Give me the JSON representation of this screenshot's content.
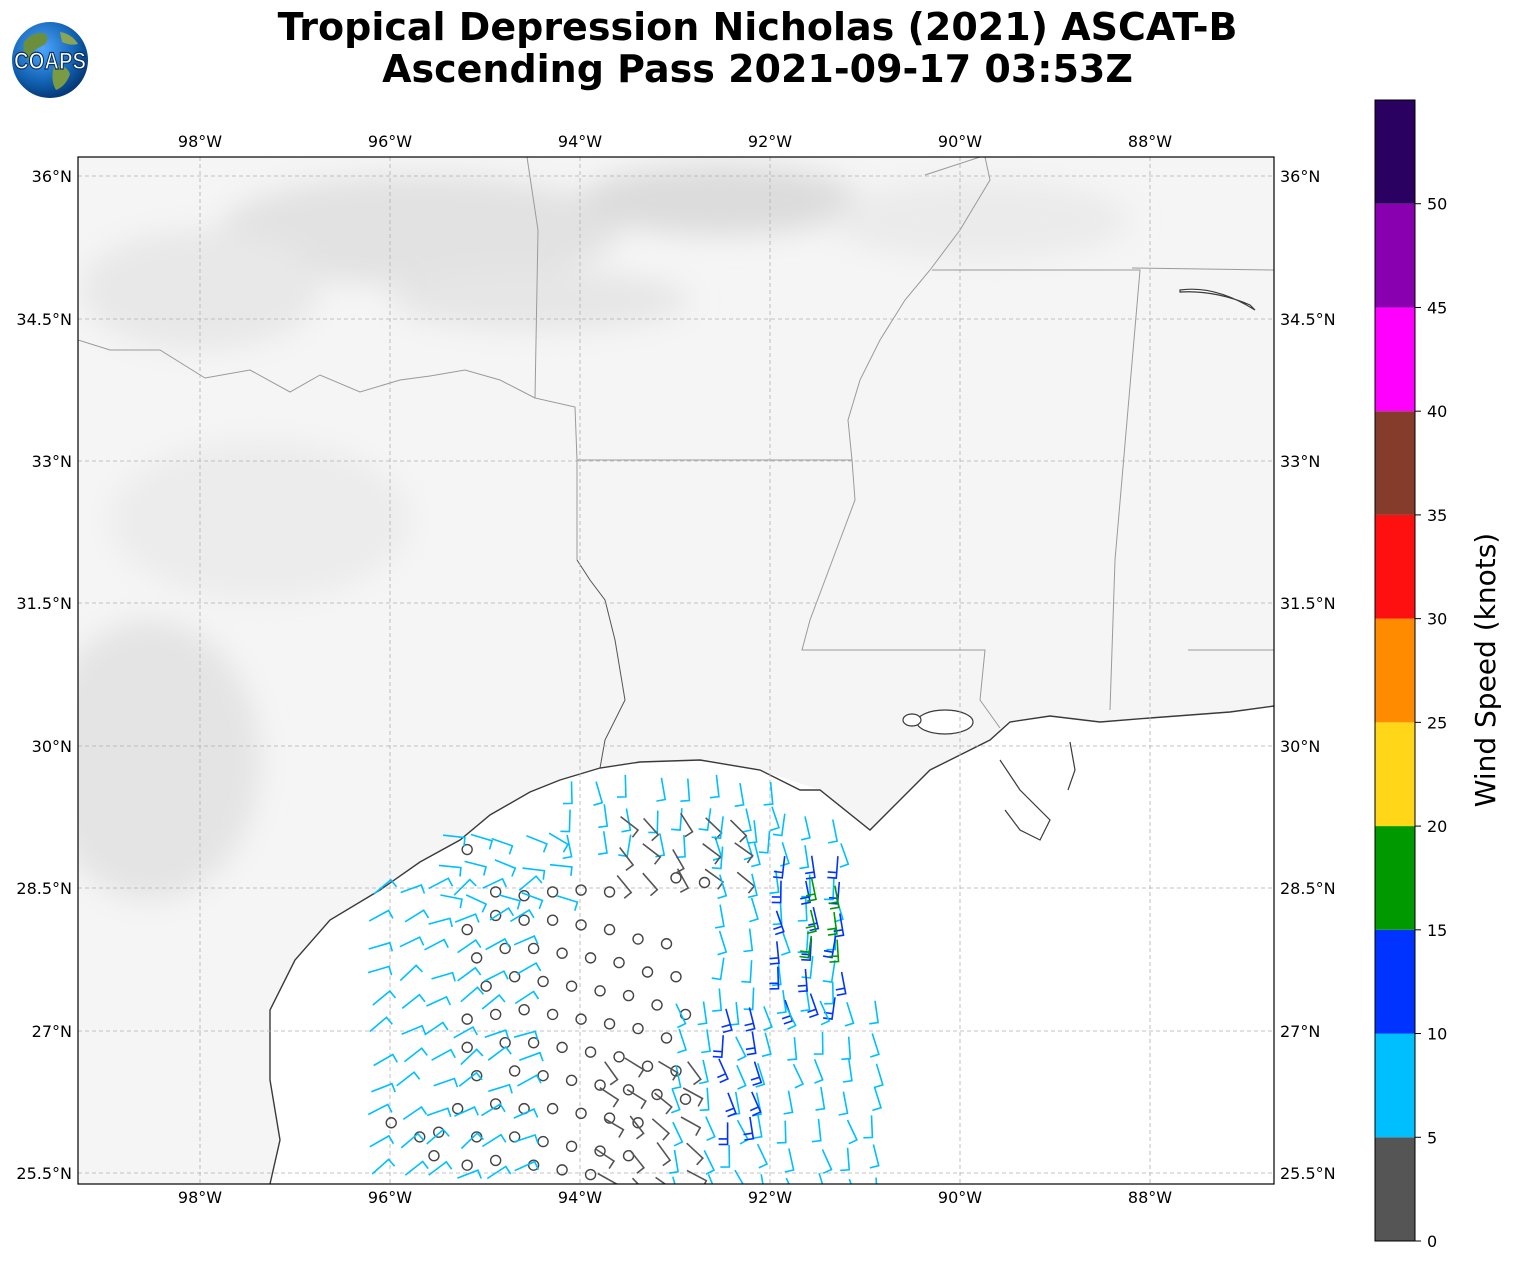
{
  "title": {
    "line1": "Tropical Depression Nicholas (2021) ASCAT-B",
    "line2": "Ascending Pass 2021-09-17 03:53Z"
  },
  "logo": {
    "text": "COAPS",
    "icon": "globe-logo-icon"
  },
  "map": {
    "lon_range": [
      -99.3,
      -86.7
    ],
    "lat_range": [
      25.3,
      36.2
    ],
    "lon_ticks": [
      "98°W",
      "96°W",
      "94°W",
      "92°W",
      "90°W",
      "88°W"
    ],
    "lat_ticks": [
      "36°N",
      "34.5°N",
      "33°N",
      "31.5°N",
      "30°N",
      "28.5°N",
      "27°N",
      "25.5°N"
    ],
    "gridlines": true,
    "background": "grayscale satellite imagery"
  },
  "colorbar": {
    "label": "Wind Speed (knots)",
    "ticks": [
      "0",
      "5",
      "10",
      "15",
      "20",
      "25",
      "30",
      "35",
      "40",
      "45",
      "50"
    ],
    "bins": [
      {
        "min": 0,
        "max": 5,
        "color": "#555555"
      },
      {
        "min": 5,
        "max": 10,
        "color": "#00bfff"
      },
      {
        "min": 10,
        "max": 15,
        "color": "#0033ff"
      },
      {
        "min": 15,
        "max": 20,
        "color": "#009900"
      },
      {
        "min": 20,
        "max": 25,
        "color": "#ffd618"
      },
      {
        "min": 25,
        "max": 30,
        "color": "#ff8c00"
      },
      {
        "min": 30,
        "max": 35,
        "color": "#ff1010"
      },
      {
        "min": 35,
        "max": 40,
        "color": "#853c2a"
      },
      {
        "min": 40,
        "max": 45,
        "color": "#ff00ff"
      },
      {
        "min": 45,
        "max": 50,
        "color": "#8800b0"
      },
      {
        "min": 50,
        "max": 55,
        "color": "#2a0060"
      }
    ]
  },
  "wind_data": {
    "calm_points": [
      [
        -94.9,
        28.4
      ],
      [
        -94.6,
        28.36
      ],
      [
        -94.3,
        28.4
      ],
      [
        -94.0,
        28.42
      ],
      [
        -93.7,
        28.4
      ],
      [
        -95.2,
        28.0
      ],
      [
        -94.9,
        28.15
      ],
      [
        -94.6,
        28.1
      ],
      [
        -94.3,
        28.1
      ],
      [
        -94.0,
        28.05
      ],
      [
        -93.7,
        28.0
      ],
      [
        -93.4,
        27.9
      ],
      [
        -93.1,
        27.85
      ],
      [
        -95.1,
        27.7
      ],
      [
        -94.8,
        27.8
      ],
      [
        -94.5,
        27.8
      ],
      [
        -94.2,
        27.75
      ],
      [
        -93.9,
        27.7
      ],
      [
        -93.6,
        27.65
      ],
      [
        -93.3,
        27.55
      ],
      [
        -93.0,
        27.5
      ],
      [
        -95.0,
        27.4
      ],
      [
        -94.7,
        27.5
      ],
      [
        -94.4,
        27.45
      ],
      [
        -94.1,
        27.4
      ],
      [
        -93.8,
        27.35
      ],
      [
        -93.5,
        27.3
      ],
      [
        -93.2,
        27.2
      ],
      [
        -92.9,
        27.1
      ],
      [
        -94.9,
        27.1
      ],
      [
        -94.6,
        27.15
      ],
      [
        -94.3,
        27.1
      ],
      [
        -94.0,
        27.05
      ],
      [
        -93.7,
        27.0
      ],
      [
        -93.4,
        26.95
      ],
      [
        -93.1,
        26.85
      ],
      [
        -95.2,
        26.75
      ],
      [
        -94.8,
        26.8
      ],
      [
        -94.5,
        26.8
      ],
      [
        -94.2,
        26.75
      ],
      [
        -93.9,
        26.7
      ],
      [
        -93.6,
        26.65
      ],
      [
        -93.3,
        26.55
      ],
      [
        -93.0,
        26.5
      ],
      [
        -95.1,
        26.45
      ],
      [
        -94.7,
        26.5
      ],
      [
        -94.4,
        26.45
      ],
      [
        -94.1,
        26.4
      ],
      [
        -93.8,
        26.35
      ],
      [
        -93.5,
        26.3
      ],
      [
        -93.2,
        26.25
      ],
      [
        -92.9,
        26.2
      ],
      [
        -95.3,
        26.1
      ],
      [
        -94.9,
        26.15
      ],
      [
        -94.6,
        26.1
      ],
      [
        -94.3,
        26.1
      ],
      [
        -94.0,
        26.05
      ],
      [
        -93.7,
        26.0
      ],
      [
        -93.4,
        25.95
      ],
      [
        -95.5,
        25.85
      ],
      [
        -95.1,
        25.8
      ],
      [
        -94.7,
        25.8
      ],
      [
        -94.4,
        25.75
      ],
      [
        -94.1,
        25.7
      ],
      [
        -93.8,
        25.65
      ],
      [
        -93.5,
        25.6
      ],
      [
        -96.0,
        25.95
      ],
      [
        -95.2,
        25.5
      ],
      [
        -94.9,
        25.55
      ],
      [
        -94.5,
        25.5
      ],
      [
        -94.2,
        25.45
      ],
      [
        -93.9,
        25.4
      ],
      [
        -95.7,
        25.8
      ],
      [
        -95.55,
        25.6
      ],
      [
        -95.2,
        27.05
      ],
      [
        -93.0,
        28.55
      ],
      [
        -92.7,
        28.5
      ],
      [
        -95.2,
        28.85
      ]
    ],
    "barb_regions": [
      {
        "lon": [
          -96.2,
          -94.7
        ],
        "lat": [
          25.4,
          28.4
        ],
        "speed": 7,
        "dir": 60
      },
      {
        "lon": [
          -95.5,
          -94.3
        ],
        "lat": [
          28.4,
          29.2
        ],
        "speed": 7,
        "dir": 110
      },
      {
        "lon": [
          -94.1,
          -92.0
        ],
        "lat": [
          29.0,
          29.8
        ],
        "speed": 7,
        "dir": 175
      },
      {
        "lon": [
          -93.6,
          -92.2
        ],
        "lat": [
          28.6,
          29.2
        ],
        "speed": 4,
        "dir": 140
      },
      {
        "lon": [
          -92.5,
          -91.3
        ],
        "lat": [
          27.4,
          29.2
        ],
        "speed": 8,
        "dir": 175
      },
      {
        "lon": [
          -91.9,
          -91.3
        ],
        "lat": [
          27.3,
          28.8
        ],
        "speed": 12,
        "dir": 175
      },
      {
        "lon": [
          -91.6,
          -91.3
        ],
        "lat": [
          27.9,
          28.5
        ],
        "speed": 17,
        "dir": 180
      },
      {
        "lon": [
          -93.0,
          -90.8
        ],
        "lat": [
          25.4,
          27.4
        ],
        "speed": 7,
        "dir": 165
      },
      {
        "lon": [
          -92.5,
          -92.0
        ],
        "lat": [
          26.0,
          27.3
        ],
        "speed": 12,
        "dir": 170
      },
      {
        "lon": [
          -93.8,
          -92.9
        ],
        "lat": [
          25.4,
          26.6
        ],
        "speed": 4,
        "dir": 130
      }
    ]
  }
}
